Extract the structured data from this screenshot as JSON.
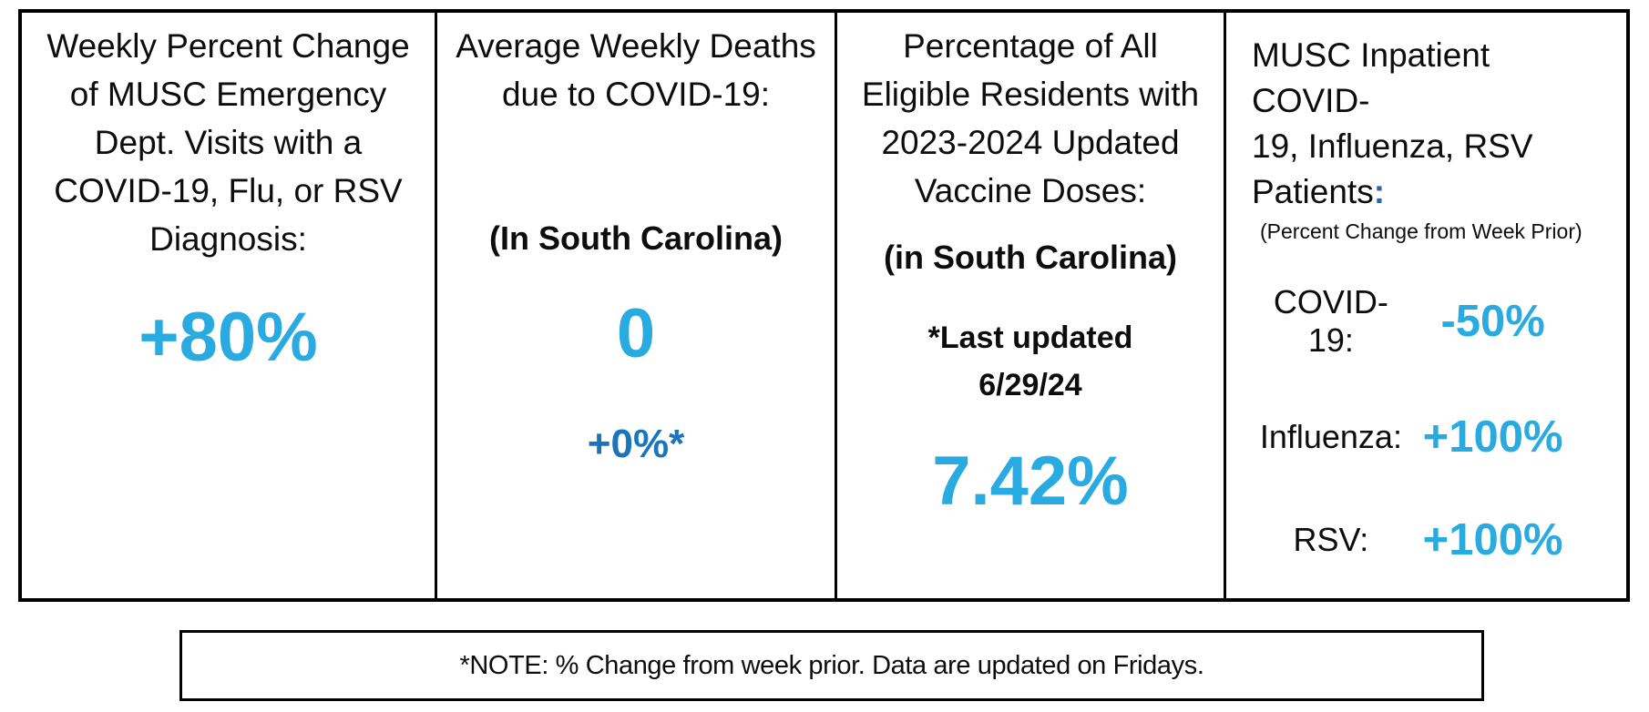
{
  "colors": {
    "value_blue": "#29ABE2",
    "delta_blue": "#1B75BC",
    "colon_navy": "#2E64A8",
    "border_black": "#000000"
  },
  "panels": {
    "ed_visits": {
      "title_lines": [
        "Weekly Percent Change",
        "of MUSC Emergency",
        "Dept. Visits with a",
        "COVID-19, Flu, or RSV",
        "Diagnosis:"
      ],
      "value": "+80%"
    },
    "weekly_deaths": {
      "title_lines": [
        "Average Weekly Deaths",
        "due to COVID-19:"
      ],
      "region": "(In South Carolina)",
      "value": "0",
      "delta": "+0%*"
    },
    "vaccine_doses": {
      "title_lines": [
        "Percentage of All",
        "Eligible Residents with",
        "2023-2024 Updated",
        "Vaccine Doses:"
      ],
      "region": "(in South Carolina)",
      "updated_lines": [
        "*Last updated",
        "6/29/24"
      ],
      "value": "7.42%"
    },
    "inpatient": {
      "title_lines": [
        "MUSC Inpatient COVID-",
        "19, Influenza, RSV"
      ],
      "title_last_word": "Patients",
      "title_colon": ":",
      "subnote": "(Percent Change from Week Prior)",
      "rows": [
        {
          "label": "COVID-19:",
          "value": "-50%"
        },
        {
          "label": "Influenza:",
          "value": "+100%"
        },
        {
          "label": "RSV:",
          "value": "+100%"
        }
      ]
    }
  },
  "note": "*NOTE: % Change from week prior. Data are updated on Fridays."
}
